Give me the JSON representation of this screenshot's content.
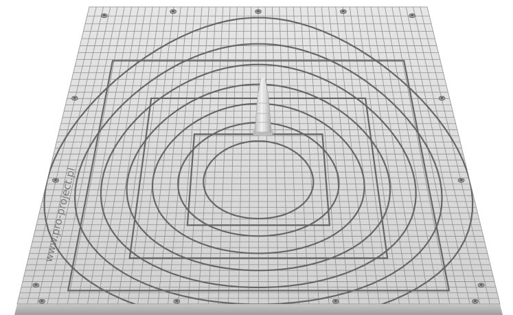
{
  "image": {
    "subject": "vacuum-table",
    "watermark_text": "www.pro-project.pl"
  },
  "colors": {
    "background": "#ffffff",
    "plate_surface": "#d9d9d9",
    "grid_lines": "#8a8a8a",
    "grooves": "#6a6a6a",
    "edge": "#bdbdbd",
    "bolts": "#9a9a9a"
  }
}
